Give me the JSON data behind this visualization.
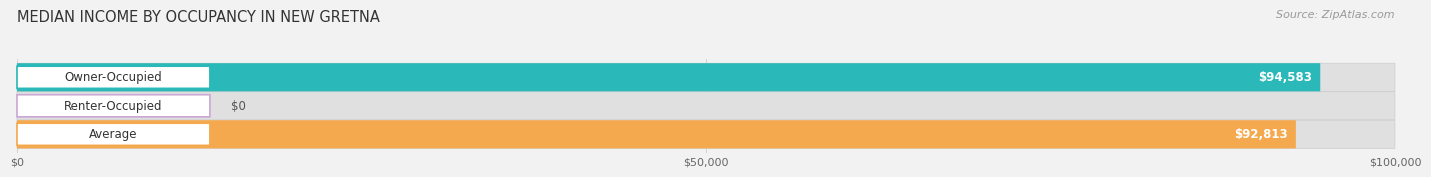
{
  "title": "MEDIAN INCOME BY OCCUPANCY IN NEW GRETNA",
  "source": "Source: ZipAtlas.com",
  "categories": [
    "Owner-Occupied",
    "Renter-Occupied",
    "Average"
  ],
  "values": [
    94583,
    0,
    92813
  ],
  "bar_colors": [
    "#2ab8b8",
    "#c9a8d4",
    "#f5a94e"
  ],
  "value_labels": [
    "$94,583",
    "$0",
    "$92,813"
  ],
  "xlim": [
    0,
    100000
  ],
  "xticks": [
    0,
    50000,
    100000
  ],
  "xtick_labels": [
    "$0",
    "$50,000",
    "$100,000"
  ],
  "background_color": "#f2f2f2",
  "bar_background_color": "#e0e0e0",
  "title_fontsize": 10.5,
  "source_fontsize": 8,
  "bar_height": 0.52,
  "bar_label_fontsize": 8.5,
  "value_label_fontsize": 8.5
}
